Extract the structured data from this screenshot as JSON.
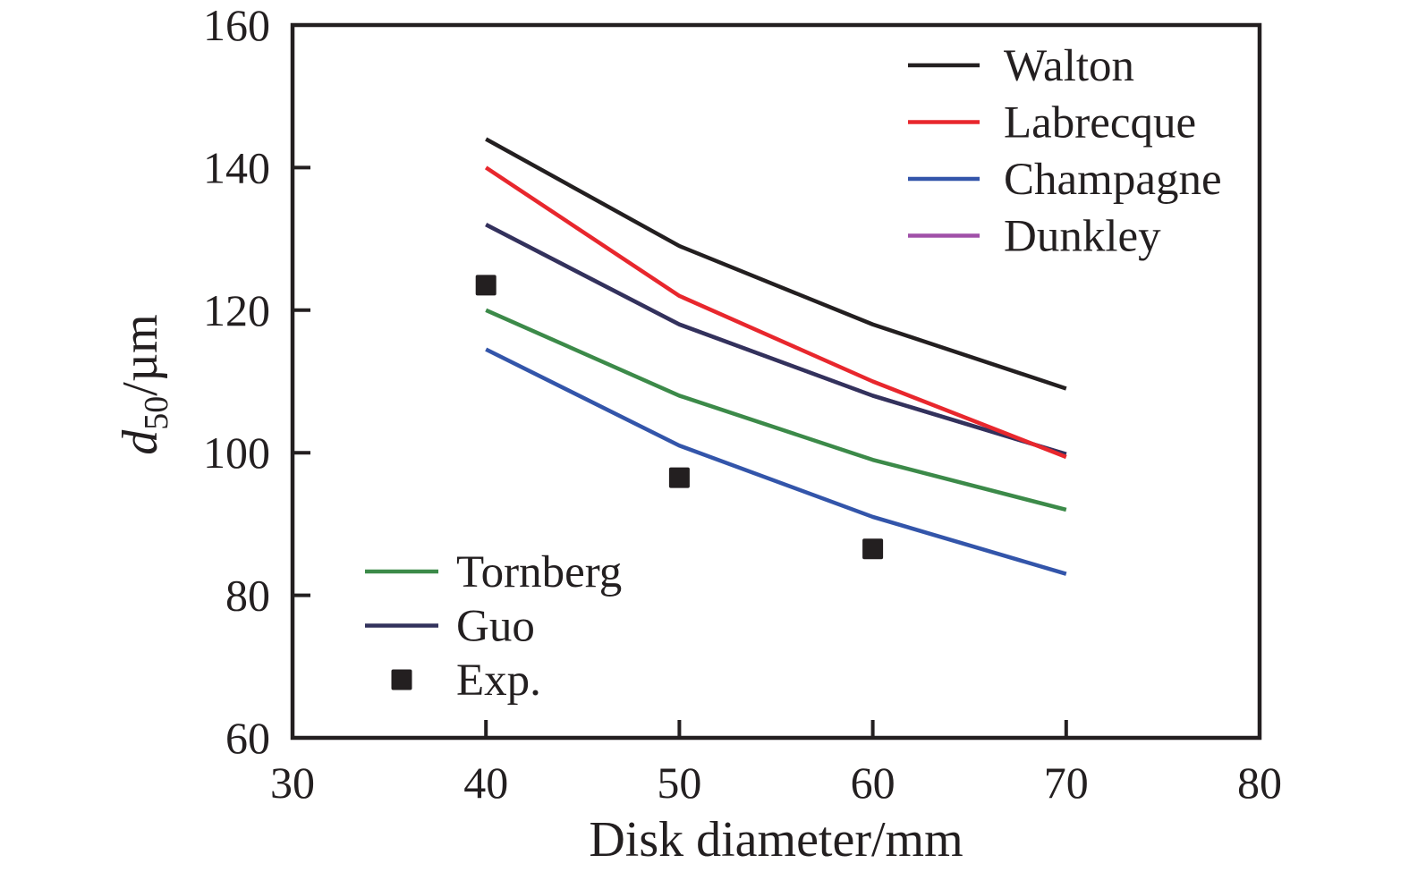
{
  "figure": {
    "background": "#ffffff",
    "text_color": "#231f20",
    "axis_color": "#231f20"
  },
  "chart_data": {
    "type": "line",
    "title": "",
    "xlabel": "Disk diameter/mm",
    "ylabel": "d50/µm",
    "ylabel_parts": {
      "var": "d",
      "sub": "50",
      "unit": "/µm"
    },
    "xlim": [
      30,
      80
    ],
    "ylim": [
      60,
      160
    ],
    "xticks": [
      "30",
      "40",
      "50",
      "60",
      "70",
      "80"
    ],
    "yticks": [
      "60",
      "80",
      "100",
      "120",
      "140",
      "160"
    ],
    "grid": false,
    "x": [
      40,
      50,
      60,
      70
    ],
    "series": [
      {
        "name": "Dunkley",
        "color": "#a050a8",
        "values": [
          132,
          118,
          108,
          99.8
        ],
        "note": "coincides with Guo, hidden underneath"
      },
      {
        "name": "Guo",
        "color": "#32325c",
        "values": [
          132,
          118,
          108,
          99.8
        ]
      },
      {
        "name": "Labrecque",
        "color": "#e8272d",
        "values": [
          140,
          122,
          110,
          99.4
        ]
      },
      {
        "name": "Walton",
        "color": "#231f20",
        "values": [
          144,
          129,
          118,
          109
        ]
      },
      {
        "name": "Tornberg",
        "color": "#3c8a49",
        "values": [
          120,
          108,
          99,
          92
        ]
      },
      {
        "name": "Champagne",
        "color": "#3355aa",
        "values": [
          114.5,
          101,
          91,
          83
        ]
      }
    ],
    "scatter": {
      "name": "Exp.",
      "color": "#231f20",
      "marker": "square",
      "points": [
        [
          40,
          123.5
        ],
        [
          50,
          96.5
        ],
        [
          60,
          86.5
        ]
      ]
    },
    "legend_top_right": {
      "position": "top-right",
      "items": [
        {
          "label": "Walton",
          "color": "#231f20",
          "swatch": "line"
        },
        {
          "label": "Labrecque",
          "color": "#e8272d",
          "swatch": "line"
        },
        {
          "label": "Champagne",
          "color": "#3355aa",
          "swatch": "line"
        },
        {
          "label": "Dunkley",
          "color": "#a050a8",
          "swatch": "line"
        }
      ]
    },
    "legend_bottom_left": {
      "position": "bottom-left",
      "items": [
        {
          "label": "Tornberg",
          "color": "#3c8a49",
          "swatch": "line"
        },
        {
          "label": "Guo",
          "color": "#32325c",
          "swatch": "line"
        },
        {
          "label": "Exp.",
          "color": "#231f20",
          "swatch": "square"
        }
      ]
    }
  }
}
